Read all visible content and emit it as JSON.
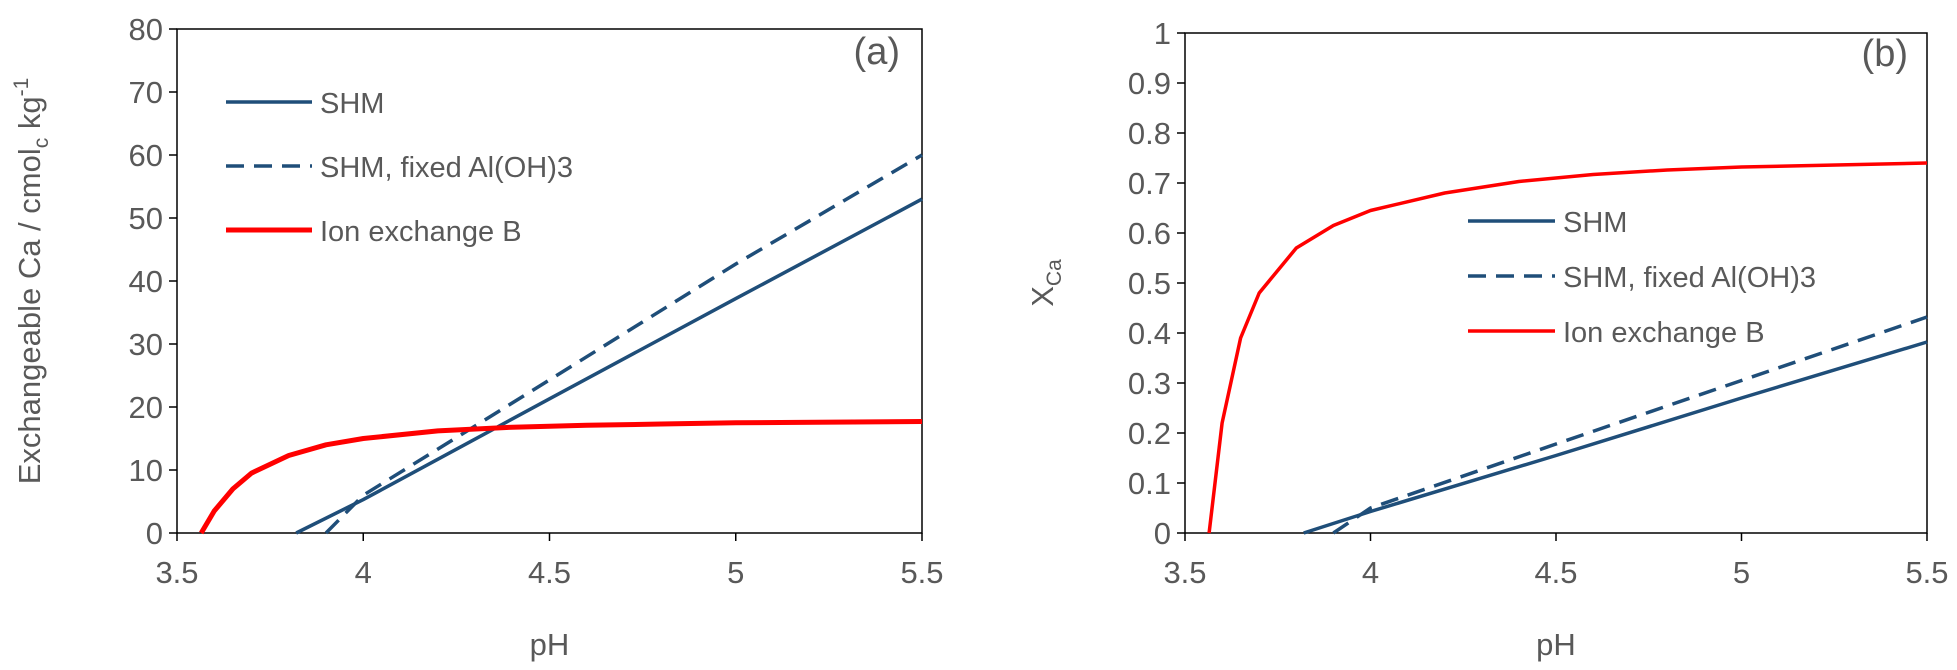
{
  "chart_data": [
    {
      "type": "line",
      "panel_label": "(a)",
      "xlabel": "pH",
      "ylabel": "Exchangeable Ca  / cmol",
      "ylabel_sub": "c",
      "ylabel_tail": " kg",
      "ylabel_sup": "-1",
      "xlim": [
        3.5,
        5.5
      ],
      "ylim": [
        0,
        80
      ],
      "xticks": [
        3.5,
        4,
        4.5,
        5,
        5.5
      ],
      "xtick_labels": [
        "3.5",
        "4",
        "4.5",
        "5",
        "5.5"
      ],
      "yticks": [
        0,
        10,
        20,
        30,
        40,
        50,
        60,
        70,
        80
      ],
      "ytick_labels": [
        "0",
        "10",
        "20",
        "30",
        "40",
        "50",
        "60",
        "70",
        "80"
      ],
      "grid": false,
      "legend_position": "top-left",
      "series": [
        {
          "name": "SHM",
          "color": "#1f4e79",
          "style": "solid",
          "x": [
            3.82,
            4.0,
            4.5,
            5.0,
            5.5
          ],
          "y": [
            0,
            5.3,
            21.3,
            37.2,
            53.0
          ]
        },
        {
          "name": "SHM, fixed Al(OH)3",
          "color": "#1f4e79",
          "style": "dashed",
          "x": [
            3.9,
            4.0,
            4.5,
            5.0,
            5.5
          ],
          "y": [
            0,
            6.0,
            24.3,
            42.7,
            60.0
          ]
        },
        {
          "name": "Ion exchange B",
          "color": "#ff0000",
          "style": "solid",
          "x": [
            3.565,
            3.6,
            3.65,
            3.7,
            3.8,
            3.9,
            4.0,
            4.2,
            4.4,
            4.6,
            4.8,
            5.0,
            5.5
          ],
          "y": [
            0,
            3.5,
            7.0,
            9.5,
            12.3,
            14.0,
            15.0,
            16.2,
            16.8,
            17.1,
            17.3,
            17.5,
            17.7
          ]
        }
      ]
    },
    {
      "type": "line",
      "panel_label": "(b)",
      "xlabel": "pH",
      "ylabel": "X",
      "ylabel_sub": "Ca",
      "xlim": [
        3.5,
        5.5
      ],
      "ylim": [
        0,
        1
      ],
      "xticks": [
        3.5,
        4,
        4.5,
        5,
        5.5
      ],
      "xtick_labels": [
        "3.5",
        "4",
        "4.5",
        "5",
        "5.5"
      ],
      "yticks": [
        0,
        0.1,
        0.2,
        0.3,
        0.4,
        0.5,
        0.6,
        0.7,
        0.8,
        0.9,
        1
      ],
      "ytick_labels": [
        "0",
        "0.1",
        "0.2",
        "0.3",
        "0.4",
        "0.5",
        "0.6",
        "0.7",
        "0.8",
        "0.9",
        "1"
      ],
      "grid": false,
      "legend_position": "center-right",
      "series": [
        {
          "name": "SHM",
          "color": "#1f4e79",
          "style": "solid",
          "x": [
            3.82,
            4.0,
            4.5,
            5.0,
            5.5
          ],
          "y": [
            0,
            0.043,
            0.155,
            0.27,
            0.382
          ]
        },
        {
          "name": "SHM, fixed Al(OH)3",
          "color": "#1f4e79",
          "style": "dashed",
          "x": [
            3.9,
            4.0,
            4.5,
            5.0,
            5.5
          ],
          "y": [
            0,
            0.05,
            0.178,
            0.305,
            0.432
          ]
        },
        {
          "name": "Ion exchange B",
          "color": "#ff0000",
          "style": "solid",
          "x": [
            3.565,
            3.6,
            3.65,
            3.7,
            3.8,
            3.9,
            4.0,
            4.2,
            4.4,
            4.6,
            4.8,
            5.0,
            5.5
          ],
          "y": [
            0,
            0.22,
            0.39,
            0.48,
            0.57,
            0.615,
            0.645,
            0.68,
            0.703,
            0.717,
            0.726,
            0.732,
            0.74
          ]
        }
      ]
    }
  ]
}
